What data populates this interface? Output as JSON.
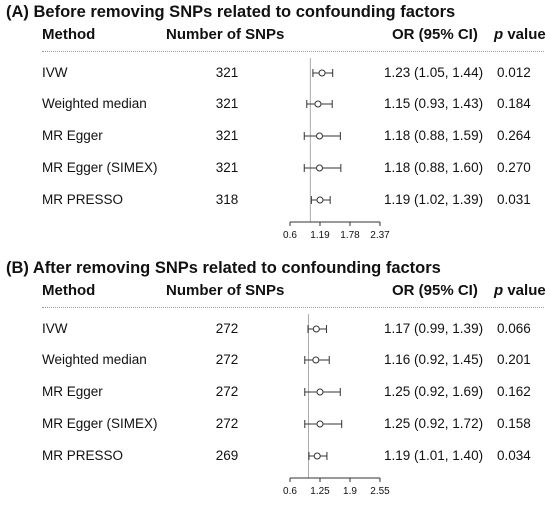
{
  "chart_data": [
    {
      "type": "forest",
      "title": "(A) Before removing SNPs related to confounding factors",
      "headers": {
        "method": "Method",
        "n": "Number of SNPs",
        "or": "OR (95% CI)",
        "p_italic": "p",
        "p_rest": " value"
      },
      "x_ticks": [
        0.6,
        1.19,
        1.78,
        2.37
      ],
      "x_tick_labels": [
        "0.6",
        "1.19",
        "1.78",
        "2.37"
      ],
      "xlim": [
        0.6,
        2.37
      ],
      "reference": 1,
      "rows": [
        {
          "method": "IVW",
          "n": "321",
          "or": 1.23,
          "lo": 1.05,
          "hi": 1.44,
          "or_text": "1.23 (1.05, 1.44)",
          "p": "0.012"
        },
        {
          "method": "Weighted median",
          "n": "321",
          "or": 1.15,
          "lo": 0.93,
          "hi": 1.43,
          "or_text": "1.15 (0.93, 1.43)",
          "p": "0.184"
        },
        {
          "method": "MR Egger",
          "n": "321",
          "or": 1.18,
          "lo": 0.88,
          "hi": 1.59,
          "or_text": "1.18 (0.88, 1.59)",
          "p": "0.264"
        },
        {
          "method": "MR Egger (SIMEX)",
          "n": "321",
          "or": 1.18,
          "lo": 0.88,
          "hi": 1.6,
          "or_text": "1.18 (0.88, 1.60)",
          "p": "0.270"
        },
        {
          "method": "MR PRESSO",
          "n": "318",
          "or": 1.19,
          "lo": 1.02,
          "hi": 1.39,
          "or_text": "1.19 (1.02, 1.39)",
          "p": "0.031"
        }
      ]
    },
    {
      "type": "forest",
      "title": "(B) After removing SNPs related to confounding factors",
      "headers": {
        "method": "Method",
        "n": "Number of SNPs",
        "or": "OR (95% CI)",
        "p_italic": "p",
        "p_rest": " value"
      },
      "x_ticks": [
        0.6,
        1.25,
        1.9,
        2.55
      ],
      "x_tick_labels": [
        "0.6",
        "1.25",
        "1.9",
        "2.55"
      ],
      "xlim": [
        0.6,
        2.55
      ],
      "reference": 1,
      "rows": [
        {
          "method": "IVW",
          "n": "272",
          "or": 1.17,
          "lo": 0.99,
          "hi": 1.39,
          "or_text": "1.17 (0.99, 1.39)",
          "p": "0.066"
        },
        {
          "method": "Weighted median",
          "n": "272",
          "or": 1.16,
          "lo": 0.92,
          "hi": 1.45,
          "or_text": "1.16 (0.92, 1.45)",
          "p": "0.201"
        },
        {
          "method": "MR Egger",
          "n": "272",
          "or": 1.25,
          "lo": 0.92,
          "hi": 1.69,
          "or_text": "1.25 (0.92, 1.69)",
          "p": "0.162"
        },
        {
          "method": "MR Egger (SIMEX)",
          "n": "272",
          "or": 1.25,
          "lo": 0.92,
          "hi": 1.72,
          "or_text": "1.25 (0.92, 1.72)",
          "p": "0.158"
        },
        {
          "method": "MR PRESSO",
          "n": "269",
          "or": 1.19,
          "lo": 1.01,
          "hi": 1.4,
          "or_text": "1.19 (1.01, 1.40)",
          "p": "0.034"
        }
      ]
    }
  ]
}
